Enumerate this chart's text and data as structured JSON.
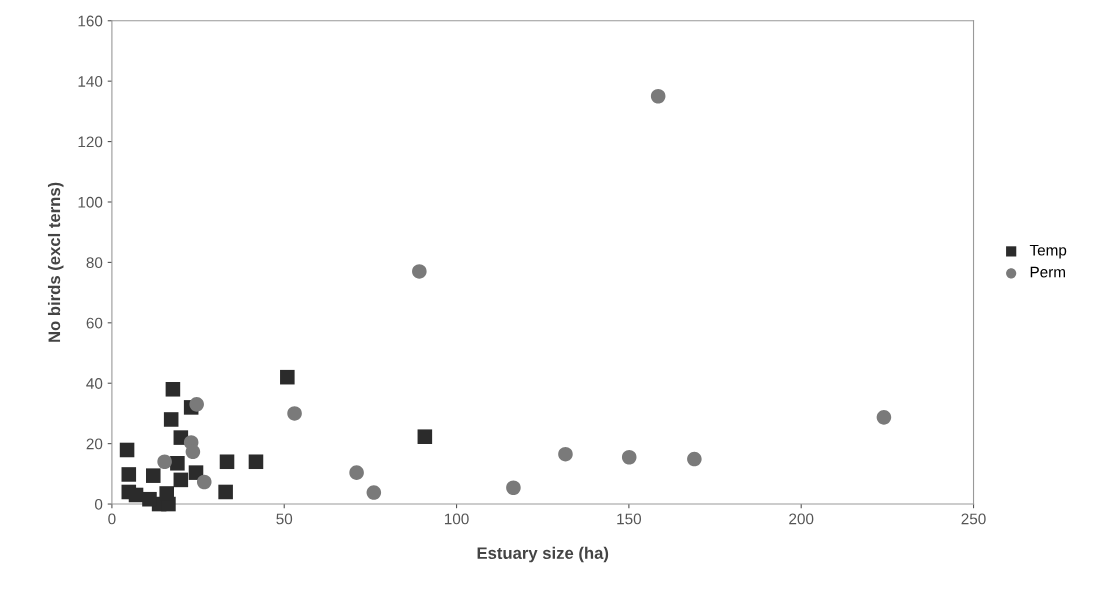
{
  "chart_data": {
    "type": "scatter",
    "xlabel": "Estuary size (ha)",
    "ylabel": "No birds (excl terns)",
    "xlim": [
      0,
      250
    ],
    "xticks": [
      0,
      50,
      100,
      150,
      200,
      250
    ],
    "ylim": [
      0,
      160
    ],
    "yticks": [
      0,
      20,
      40,
      60,
      80,
      100,
      120,
      140,
      160
    ],
    "grid": false,
    "legend": "right",
    "series": [
      {
        "name": "Temp",
        "color": "#2b2b2b",
        "marker": "square",
        "x": [
          4.4,
          4.9,
          4.9,
          7,
          12,
          13.7,
          16.4,
          15.9,
          17.7,
          17.2,
          20,
          23,
          19,
          20,
          24.4,
          33.4,
          33,
          41.8,
          50.9,
          90.8,
          10.9
        ],
        "values": [
          17.9,
          9.8,
          4,
          3,
          9.4,
          0,
          0,
          3.5,
          38,
          28,
          22,
          32,
          13.5,
          8,
          10.4,
          14,
          4,
          14,
          42,
          22.3,
          1.6
        ]
      },
      {
        "name": "Perm",
        "color": "#7a7a7a",
        "marker": "circle",
        "x": [
          24.6,
          53,
          15.3,
          23,
          23.5,
          26.8,
          71,
          76,
          89.2,
          116.5,
          131.6,
          150.1,
          158.5,
          169,
          224
        ],
        "values": [
          33,
          30,
          14,
          20.4,
          17.3,
          7.3,
          10.4,
          3.8,
          77,
          5.4,
          16.5,
          15.5,
          135,
          14.9,
          28.7
        ]
      }
    ]
  }
}
